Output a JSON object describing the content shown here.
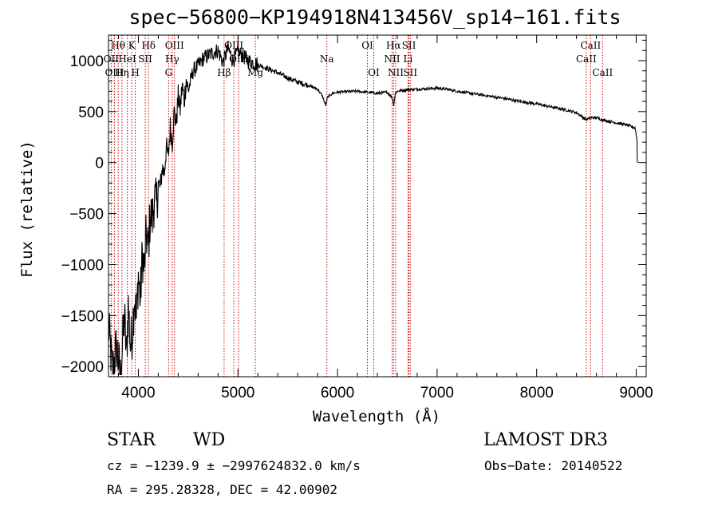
{
  "chart_data": {
    "type": "line",
    "title": "spec−56800−KP194918N413456V_sp14−161.fits",
    "xlabel": "Wavelength (Å)",
    "ylabel": "Flux (relative)",
    "xlim": [
      3700,
      9100
    ],
    "ylim": [
      -2100,
      1250
    ],
    "xticks": [
      4000,
      5000,
      6000,
      7000,
      8000,
      9000
    ],
    "xtick_labels": [
      "4000",
      "5000",
      "6000",
      "7000",
      "8000",
      "9000"
    ],
    "yticks": [
      -2000,
      -1500,
      -1000,
      -500,
      0,
      500,
      1000
    ],
    "ytick_labels": [
      "−2000",
      "−1500",
      "−1000",
      "−500",
      "0",
      "500",
      "1000"
    ],
    "series": [
      {
        "name": "spectrum",
        "color": "#000000",
        "x": [
          3700,
          3740,
          3780,
          3820,
          3860,
          3880,
          3900,
          3920,
          3940,
          3960,
          3980,
          4000,
          4020,
          4040,
          4060,
          4080,
          4100,
          4120,
          4140,
          4160,
          4180,
          4200,
          4220,
          4240,
          4260,
          4280,
          4300,
          4320,
          4340,
          4360,
          4380,
          4400,
          4420,
          4440,
          4460,
          4480,
          4500,
          4550,
          4600,
          4650,
          4700,
          4750,
          4800,
          4850,
          4900,
          4950,
          5000,
          5050,
          5100,
          5150,
          5200,
          5300,
          5400,
          5500,
          5600,
          5700,
          5800,
          5850,
          5880,
          5900,
          5950,
          6000,
          6100,
          6200,
          6300,
          6400,
          6500,
          6550,
          6563,
          6580,
          6600,
          6700,
          6800,
          6900,
          7000,
          7100,
          7200,
          7300,
          7400,
          7500,
          7600,
          7700,
          7800,
          7900,
          8000,
          8100,
          8200,
          8300,
          8400,
          8498,
          8542,
          8600,
          8662,
          8700,
          8800,
          8900,
          8990,
          9010,
          9010
        ],
        "y": [
          -1600,
          -2050,
          -1800,
          -2100,
          -1500,
          -1900,
          -1400,
          -1800,
          -1650,
          -1300,
          -1550,
          -1100,
          -1350,
          -900,
          -1050,
          -700,
          -850,
          -500,
          -550,
          -350,
          -420,
          -200,
          -250,
          -50,
          -100,
          150,
          50,
          350,
          200,
          500,
          380,
          650,
          520,
          760,
          600,
          820,
          700,
          900,
          950,
          1020,
          1050,
          1080,
          1100,
          980,
          1120,
          1000,
          1080,
          1050,
          1000,
          980,
          960,
          920,
          880,
          830,
          790,
          760,
          720,
          650,
          560,
          640,
          680,
          690,
          695,
          700,
          690,
          680,
          690,
          640,
          560,
          680,
          700,
          715,
          720,
          725,
          730,
          720,
          700,
          685,
          670,
          655,
          640,
          625,
          605,
          590,
          575,
          555,
          535,
          515,
          490,
          420,
          440,
          440,
          420,
          410,
          390,
          370,
          340,
          200,
          0
        ]
      }
    ],
    "lines": [
      {
        "label": "Hθ",
        "x": 3797,
        "row": 1
      },
      {
        "label": "OII",
        "x": 3727,
        "row": 2
      },
      {
        "label": "OIII",
        "x": 3760,
        "row": 3
      },
      {
        "label": "Hη",
        "x": 3835,
        "row": 3
      },
      {
        "label": "K",
        "x": 3934,
        "row": 1
      },
      {
        "label": "HeI",
        "x": 3889,
        "row": 2
      },
      {
        "label": "H",
        "x": 3969,
        "row": 3
      },
      {
        "label": "SII",
        "x": 4069,
        "row": 2
      },
      {
        "label": "Hδ",
        "x": 4102,
        "row": 1
      },
      {
        "label": "OIII",
        "x": 4363,
        "row": 1
      },
      {
        "label": "Hγ",
        "x": 4340,
        "row": 2
      },
      {
        "label": "G",
        "x": 4304,
        "row": 3
      },
      {
        "label": "Hβ",
        "x": 4861,
        "row": 3
      },
      {
        "label": "OIII",
        "x": 4959,
        "row": 1
      },
      {
        "label": "OIII",
        "x": 5007,
        "row": 2
      },
      {
        "label": "Mg",
        "x": 5175,
        "row": 3
      },
      {
        "label": "Na",
        "x": 5893,
        "row": 2
      },
      {
        "label": "OI",
        "x": 6300,
        "row": 1
      },
      {
        "label": "OI",
        "x": 6364,
        "row": 3
      },
      {
        "label": "Hα",
        "x": 6563,
        "row": 1
      },
      {
        "label": "NII",
        "x": 6548,
        "row": 2
      },
      {
        "label": "NII",
        "x": 6584,
        "row": 3
      },
      {
        "label": "SII",
        "x": 6717,
        "row": 1
      },
      {
        "label": "Li",
        "x": 6708,
        "row": 2
      },
      {
        "label": "SII",
        "x": 6731,
        "row": 3
      },
      {
        "label": "CaII",
        "x": 8542,
        "row": 1
      },
      {
        "label": "CaII",
        "x": 8498,
        "row": 2
      },
      {
        "label": "CaII",
        "x": 8662,
        "row": 3
      }
    ],
    "line_color": "#cc0000"
  },
  "info": {
    "class": "STAR",
    "subclass": "WD",
    "survey": "LAMOST DR3",
    "cz": "cz = −1239.9 ± −2997624832.0 km/s",
    "obs_date": "Obs−Date: 20140522",
    "radec": "RA = 295.28328, DEC =  42.00902"
  }
}
